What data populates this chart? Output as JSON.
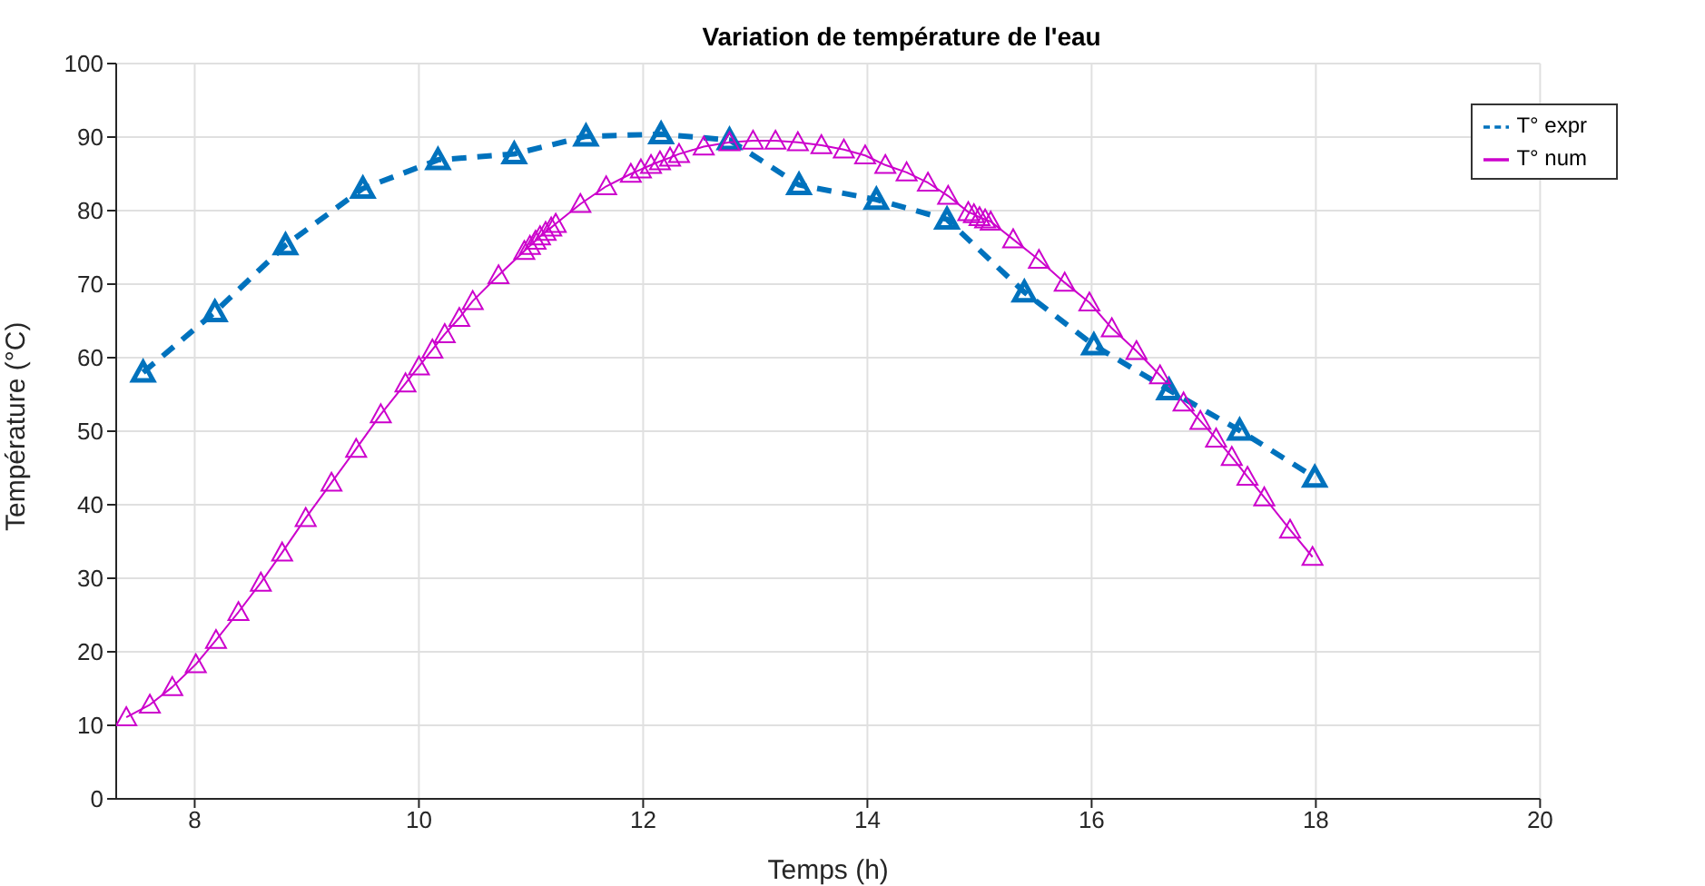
{
  "chart_data": {
    "type": "line",
    "title": "Variation de température de l'eau",
    "xlabel": "Temps (h)",
    "ylabel": "Température (°C)",
    "xlim": [
      7.3,
      20
    ],
    "xticks": [
      8,
      10,
      12,
      14,
      16,
      18,
      20
    ],
    "ylim": [
      0,
      100
    ],
    "yticks": [
      0,
      10,
      20,
      30,
      40,
      50,
      60,
      70,
      80,
      90,
      100
    ],
    "grid": true,
    "legend": "top right",
    "series": [
      {
        "name": "T° expr",
        "color": "#0072bd",
        "line_style": "dashed",
        "marker": "triangle",
        "x": [
          7.54,
          8.18,
          8.81,
          9.5,
          10.17,
          10.85,
          11.49,
          12.16,
          12.77,
          13.39,
          14.08,
          14.71,
          15.4,
          16.02,
          16.69,
          17.32,
          17.99
        ],
        "values": [
          58.0,
          66.2,
          75.3,
          83.0,
          86.9,
          87.7,
          90.1,
          90.4,
          89.6,
          83.5,
          81.5,
          78.8,
          68.9,
          61.7,
          55.6,
          50.1,
          43.7
        ]
      },
      {
        "name": "T° num",
        "color": "#cc00cc",
        "line_style": "solid",
        "marker": "triangle",
        "x": [
          7.39,
          7.6,
          7.8,
          8.01,
          8.19,
          8.39,
          8.59,
          8.78,
          8.99,
          9.22,
          9.44,
          9.66,
          9.88,
          10.0,
          10.12,
          10.23,
          10.36,
          10.48,
          10.71,
          10.94,
          10.99,
          11.04,
          11.08,
          11.13,
          11.18,
          11.22,
          11.44,
          11.67,
          11.89,
          11.98,
          12.07,
          12.15,
          12.24,
          12.32,
          12.54,
          12.77,
          12.98,
          13.18,
          13.38,
          13.59,
          13.79,
          13.98,
          14.16,
          14.35,
          14.54,
          14.72,
          14.9,
          14.95,
          15.0,
          15.05,
          15.1,
          15.3,
          15.53,
          15.76,
          15.98,
          16.18,
          16.4,
          16.61,
          16.82,
          16.97,
          17.11,
          17.25,
          17.39,
          17.54,
          17.77,
          17.97
        ],
        "values": [
          11.1,
          12.8,
          15.2,
          18.3,
          21.6,
          25.4,
          29.4,
          33.5,
          38.2,
          43.0,
          47.6,
          52.3,
          56.5,
          58.8,
          61.1,
          63.2,
          65.4,
          67.7,
          71.2,
          74.5,
          75.2,
          75.9,
          76.5,
          77.1,
          77.7,
          78.2,
          80.9,
          83.3,
          85.0,
          85.6,
          86.2,
          86.7,
          87.2,
          87.7,
          88.7,
          89.3,
          89.5,
          89.5,
          89.3,
          88.9,
          88.3,
          87.5,
          86.2,
          85.2,
          83.8,
          82.0,
          79.8,
          79.5,
          79.1,
          78.8,
          78.5,
          76.1,
          73.3,
          70.2,
          67.5,
          64.0,
          60.9,
          57.6,
          53.9,
          51.4,
          49.0,
          46.5,
          43.8,
          41.0,
          36.6,
          32.9
        ]
      }
    ]
  }
}
